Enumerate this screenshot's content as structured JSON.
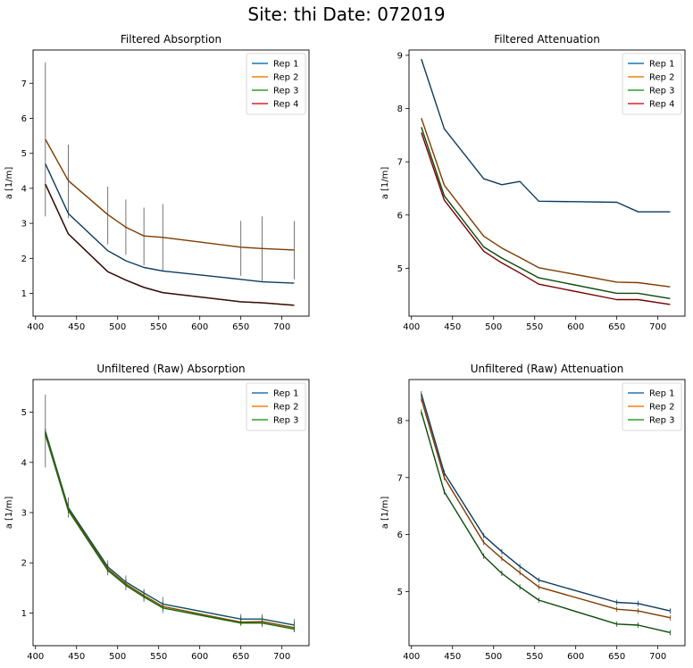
{
  "suptitle": "Site: thi Date: 072019",
  "chart_data": [
    {
      "type": "line",
      "title": "Filtered Absorption",
      "xlabel": "",
      "ylabel": "a [1/m]",
      "xlim": [
        397,
        733
      ],
      "ylim": [
        0.35,
        7.95
      ],
      "xticks": [
        400,
        450,
        500,
        550,
        600,
        650,
        700
      ],
      "yticks": [
        1,
        2,
        3,
        4,
        5,
        6,
        7
      ],
      "legend": "top-right",
      "grid": false,
      "x": [
        412,
        440,
        488,
        510,
        532,
        555,
        650,
        676,
        715
      ],
      "series": [
        {
          "name": "Rep 1",
          "color": "#1f77b4",
          "drawn_color": "#0d3b5e",
          "values": [
            4.7,
            3.28,
            2.22,
            1.93,
            1.74,
            1.64,
            1.4,
            1.33,
            1.29
          ]
        },
        {
          "name": "Rep 2",
          "color": "#ff7f0e",
          "drawn_color": "#7f3a00",
          "values": [
            5.4,
            4.22,
            3.25,
            2.89,
            2.64,
            2.6,
            2.32,
            2.28,
            2.24
          ]
        },
        {
          "name": "Rep 3",
          "color": "#2ca02c",
          "drawn_color": "#1a3a0a",
          "values": [
            4.12,
            2.7,
            1.62,
            1.38,
            1.17,
            1.02,
            0.76,
            0.73,
            0.66
          ]
        },
        {
          "name": "Rep 4",
          "color": "#d62728",
          "drawn_color": "#3a0a0a",
          "values": [
            4.12,
            2.7,
            1.62,
            1.38,
            1.17,
            1.02,
            0.76,
            0.73,
            0.66
          ]
        }
      ],
      "errorbars": [
        {
          "x": 412,
          "low": 3.2,
          "high": 7.6
        },
        {
          "x": 440,
          "low": 3.15,
          "high": 5.25
        },
        {
          "x": 488,
          "low": 2.4,
          "high": 4.05
        },
        {
          "x": 510,
          "low": 2.1,
          "high": 3.68
        },
        {
          "x": 532,
          "low": 1.8,
          "high": 3.45
        },
        {
          "x": 555,
          "low": 1.62,
          "high": 3.55
        },
        {
          "x": 650,
          "low": 1.5,
          "high": 3.07
        },
        {
          "x": 676,
          "low": 1.35,
          "high": 3.2
        },
        {
          "x": 715,
          "low": 1.4,
          "high": 3.07
        }
      ]
    },
    {
      "type": "line",
      "title": "Filtered Attenuation",
      "xlabel": "",
      "ylabel": "a [1/m]",
      "xlim": [
        397,
        733
      ],
      "ylim": [
        4.1,
        9.1
      ],
      "xticks": [
        400,
        450,
        500,
        550,
        600,
        650,
        700
      ],
      "yticks": [
        5,
        6,
        7,
        8,
        9
      ],
      "legend": "top-right",
      "grid": false,
      "x": [
        412,
        440,
        488,
        510,
        532,
        555,
        650,
        676,
        715
      ],
      "series": [
        {
          "name": "Rep 1",
          "color": "#1f77b4",
          "drawn_color": "#0d3b5e",
          "values": [
            8.93,
            7.62,
            6.68,
            6.57,
            6.63,
            6.26,
            6.24,
            6.06,
            6.06
          ]
        },
        {
          "name": "Rep 2",
          "color": "#ff7f0e",
          "drawn_color": "#7f3a00",
          "values": [
            7.82,
            6.56,
            5.6,
            5.38,
            5.2,
            5.01,
            4.74,
            4.73,
            4.65
          ]
        },
        {
          "name": "Rep 3",
          "color": "#2ca02c",
          "drawn_color": "#0a4a0a",
          "values": [
            7.65,
            6.36,
            5.4,
            5.19,
            5.01,
            4.82,
            4.53,
            4.53,
            4.43
          ]
        },
        {
          "name": "Rep 4",
          "color": "#d62728",
          "drawn_color": "#7a0000",
          "values": [
            7.55,
            6.28,
            5.32,
            5.1,
            4.91,
            4.7,
            4.41,
            4.41,
            4.32
          ]
        }
      ],
      "errorbars": []
    },
    {
      "type": "line",
      "title": "Unfiltered (Raw) Absorption",
      "xlabel": "",
      "ylabel": "a [1/m]",
      "xlim": [
        397,
        733
      ],
      "ylim": [
        0.35,
        5.65
      ],
      "xticks": [
        400,
        450,
        500,
        550,
        600,
        650,
        700
      ],
      "yticks": [
        1,
        2,
        3,
        4,
        5
      ],
      "legend": "top-right",
      "grid": false,
      "x": [
        412,
        440,
        488,
        510,
        532,
        555,
        650,
        676,
        715
      ],
      "series": [
        {
          "name": "Rep 1",
          "color": "#1f77b4",
          "drawn_color": "#0d4d5e",
          "values": [
            4.62,
            3.1,
            1.92,
            1.62,
            1.4,
            1.18,
            0.88,
            0.88,
            0.76
          ]
        },
        {
          "name": "Rep 2",
          "color": "#ff7f0e",
          "drawn_color": "#7f4a00",
          "values": [
            4.58,
            3.07,
            1.88,
            1.58,
            1.35,
            1.13,
            0.82,
            0.83,
            0.71
          ]
        },
        {
          "name": "Rep 3",
          "color": "#2ca02c",
          "drawn_color": "#1a6a0a",
          "values": [
            4.55,
            3.04,
            1.85,
            1.55,
            1.32,
            1.1,
            0.8,
            0.8,
            0.68
          ]
        }
      ],
      "errorbars": [
        {
          "x": 412,
          "low": 3.9,
          "high": 5.35
        },
        {
          "x": 440,
          "low": 2.9,
          "high": 3.3
        },
        {
          "x": 488,
          "low": 1.75,
          "high": 2.05
        },
        {
          "x": 510,
          "low": 1.45,
          "high": 1.75
        },
        {
          "x": 532,
          "low": 1.22,
          "high": 1.48
        },
        {
          "x": 555,
          "low": 1.0,
          "high": 1.32
        },
        {
          "x": 650,
          "low": 0.75,
          "high": 0.98
        },
        {
          "x": 676,
          "low": 0.72,
          "high": 0.98
        },
        {
          "x": 715,
          "low": 0.62,
          "high": 0.88
        }
      ]
    },
    {
      "type": "line",
      "title": "Unfiltered (Raw) Attenuation",
      "xlabel": "",
      "ylabel": "a [1/m]",
      "xlim": [
        397,
        733
      ],
      "ylim": [
        4.05,
        8.72
      ],
      "xticks": [
        400,
        450,
        500,
        550,
        600,
        650,
        700
      ],
      "yticks": [
        5,
        6,
        7,
        8
      ],
      "legend": "top-right",
      "grid": false,
      "x": [
        412,
        440,
        488,
        510,
        532,
        555,
        650,
        676,
        715
      ],
      "series": [
        {
          "name": "Rep 1",
          "color": "#1f77b4",
          "drawn_color": "#0d3b5e",
          "values": [
            8.47,
            7.08,
            5.98,
            5.7,
            5.44,
            5.2,
            4.81,
            4.79,
            4.66
          ]
        },
        {
          "name": "Rep 2",
          "color": "#ff7f0e",
          "drawn_color": "#7f3a00",
          "values": [
            8.38,
            7.0,
            5.86,
            5.58,
            5.33,
            5.08,
            4.69,
            4.66,
            4.54
          ]
        },
        {
          "name": "Rep 3",
          "color": "#2ca02c",
          "drawn_color": "#0a4a0a",
          "values": [
            8.15,
            6.75,
            5.62,
            5.32,
            5.08,
            4.85,
            4.43,
            4.41,
            4.28
          ]
        }
      ],
      "errorbars": []
    }
  ]
}
